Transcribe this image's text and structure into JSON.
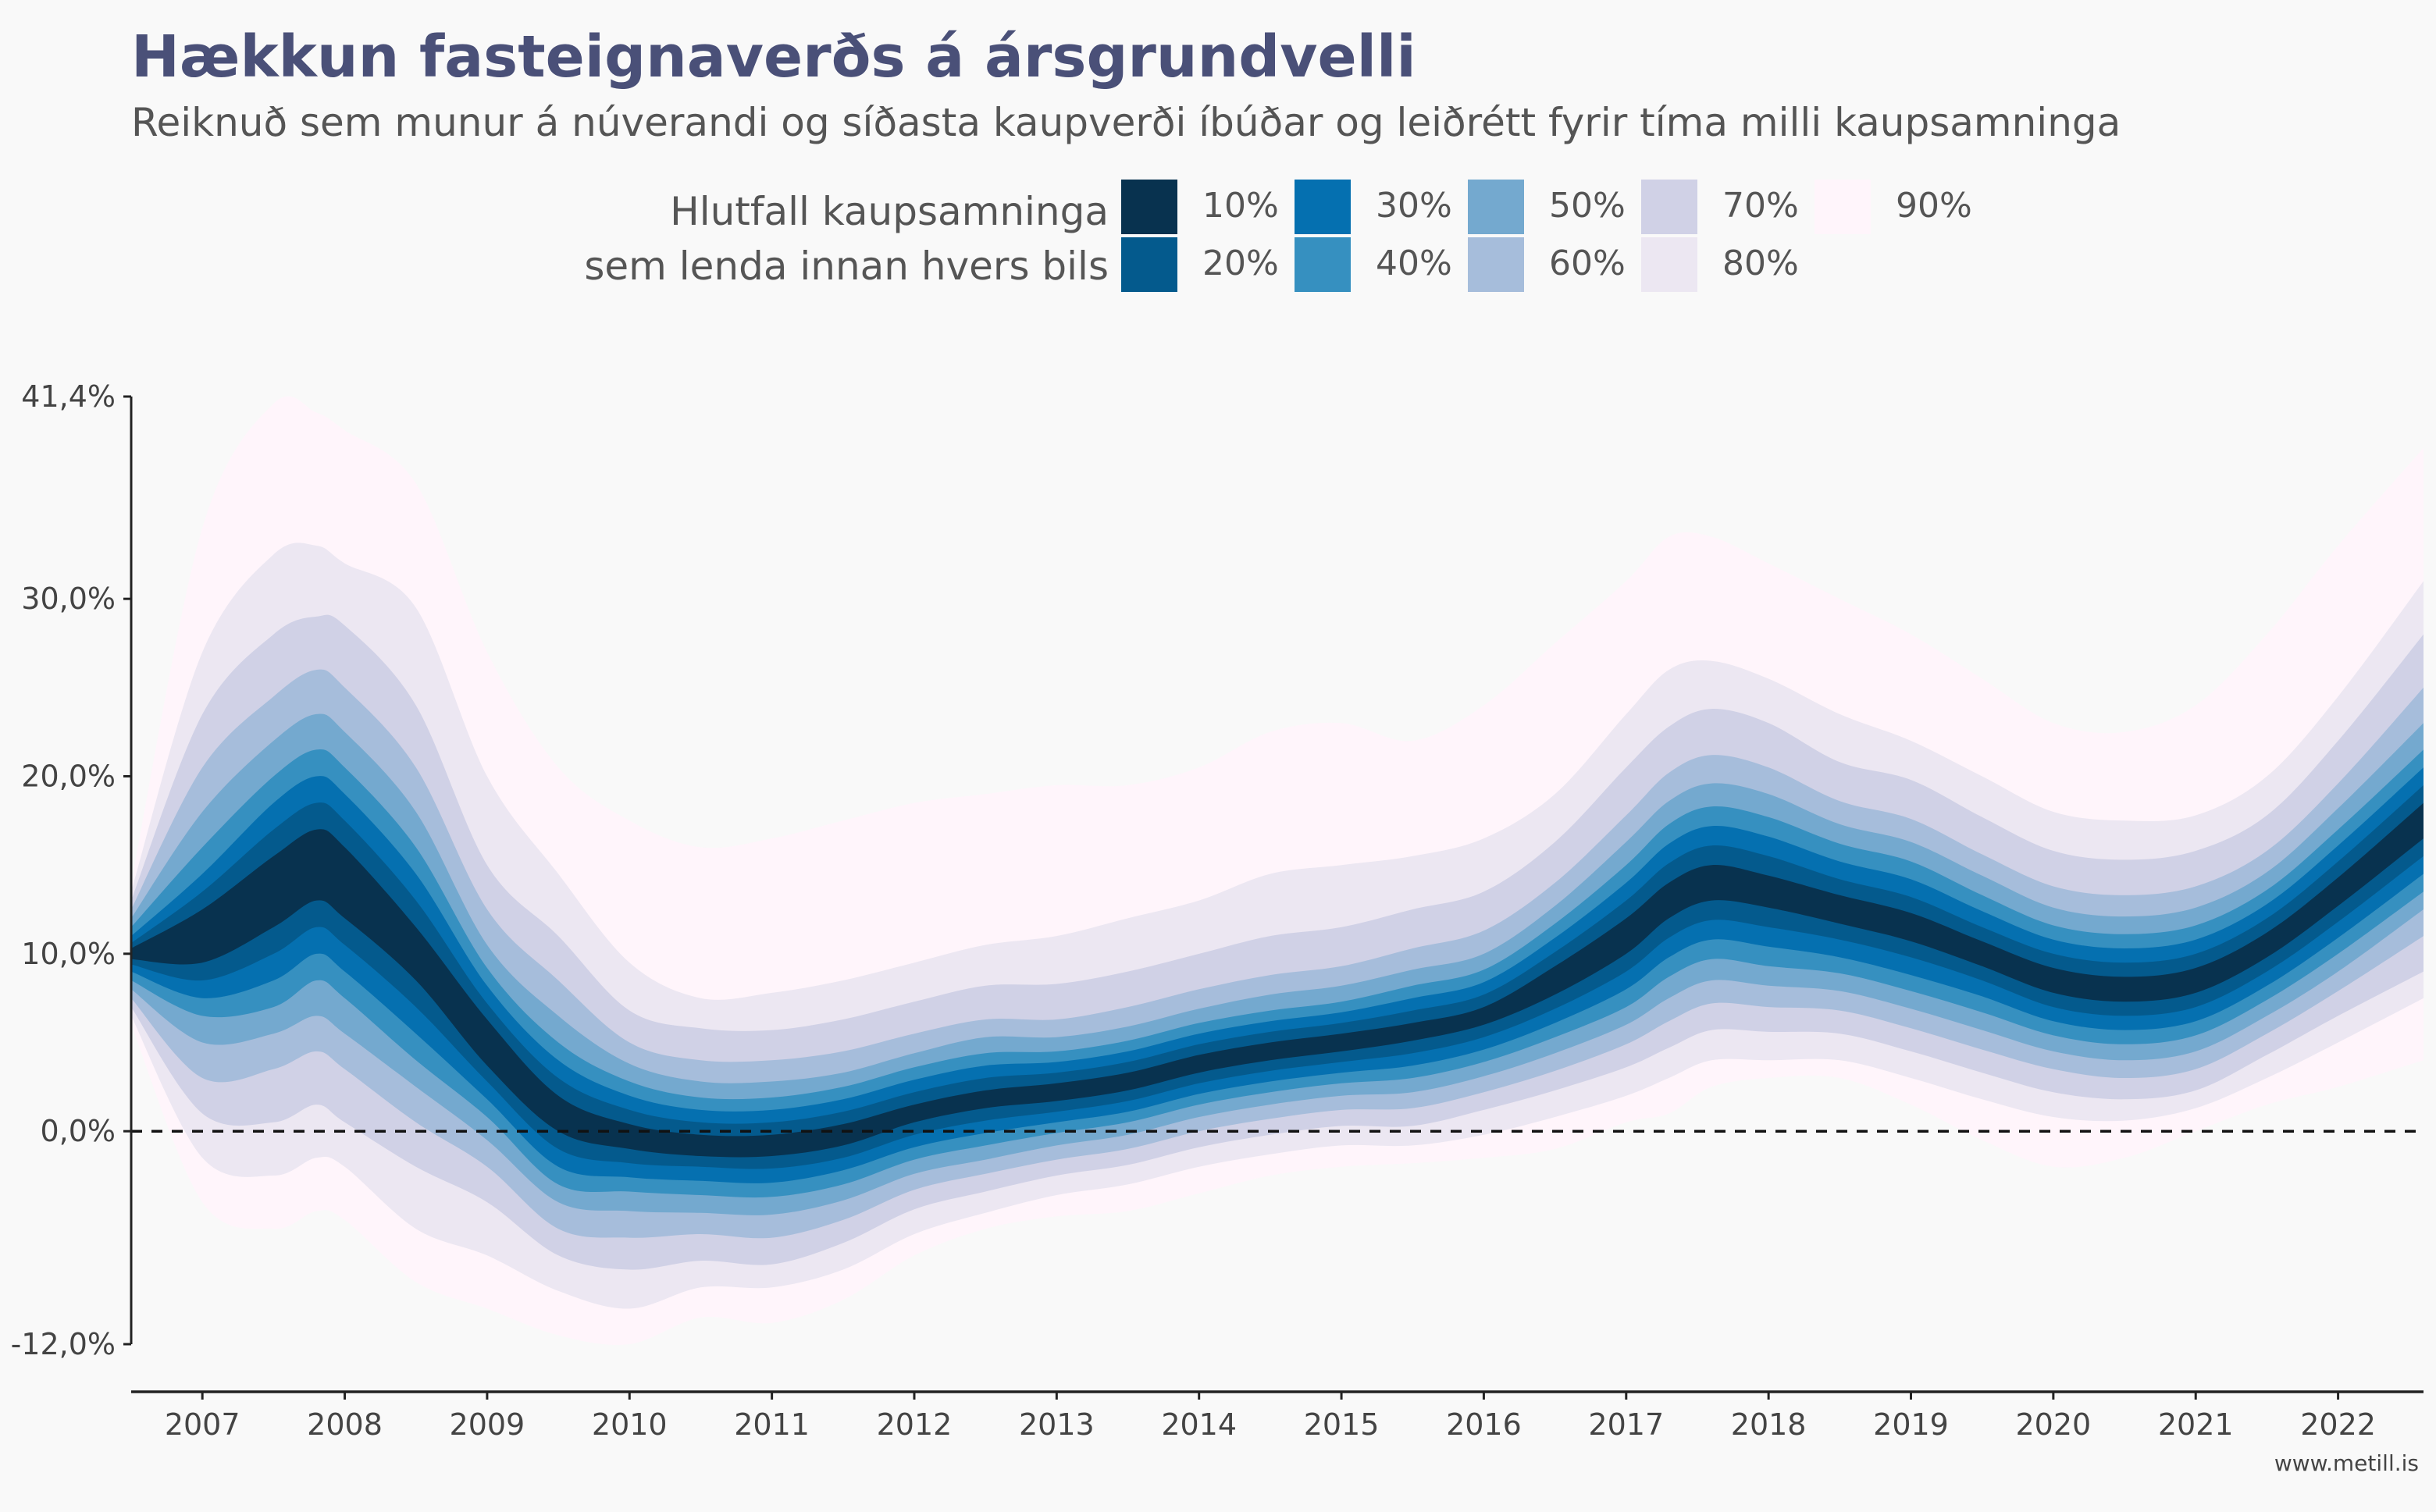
{
  "title": "Hækkun fasteignaverðs á ársgrundvelli",
  "subtitle": "Reiknuð sem munur á núverandi og síðasta kaupverði íbúðar og leiðrétt fyrir tíma milli kaupsamninga",
  "legend": {
    "title_lines": [
      "Hlutfall kaupsamninga",
      "sem lenda innan hvers bils"
    ],
    "items": [
      {
        "label": "10%",
        "color": "#08324f"
      },
      {
        "label": "20%",
        "color": "#045a8d"
      },
      {
        "label": "30%",
        "color": "#0570b0"
      },
      {
        "label": "40%",
        "color": "#3690c0"
      },
      {
        "label": "50%",
        "color": "#74a9cf"
      },
      {
        "label": "60%",
        "color": "#a6bddb"
      },
      {
        "label": "70%",
        "color": "#d0d1e6"
      },
      {
        "label": "80%",
        "color": "#ece7f2"
      },
      {
        "label": "90%",
        "color": "#fff5fb"
      }
    ]
  },
  "source": "www.metill.is",
  "chart_data": {
    "type": "area",
    "xlim": [
      2006.5,
      2022.6
    ],
    "ylim": [
      -12.0,
      41.4
    ],
    "x_ticks": [
      2007,
      2008,
      2009,
      2010,
      2011,
      2012,
      2013,
      2014,
      2015,
      2016,
      2017,
      2018,
      2019,
      2020,
      2021,
      2022
    ],
    "x_tick_labels": [
      "2007",
      "2008",
      "2009",
      "2010",
      "2011",
      "2012",
      "2013",
      "2014",
      "2015",
      "2016",
      "2017",
      "2018",
      "2019",
      "2020",
      "2021",
      "2022"
    ],
    "y_ticks": [
      -12.0,
      0.0,
      10.0,
      20.0,
      30.0,
      41.4
    ],
    "y_tick_labels": [
      "-12,0%",
      "0,0%",
      "10,0%",
      "20,0%",
      "30,0%",
      "41,4%"
    ],
    "reference_line": {
      "y": 0,
      "style": "dashed"
    },
    "x": [
      2006.5,
      2007.0,
      2007.5,
      2007.8,
      2008.0,
      2008.5,
      2009.0,
      2009.5,
      2010.0,
      2010.5,
      2011.0,
      2011.5,
      2012.0,
      2012.5,
      2013.0,
      2013.5,
      2014.0,
      2014.5,
      2015.0,
      2015.5,
      2016.0,
      2016.5,
      2017.0,
      2017.3,
      2017.6,
      2018.0,
      2018.5,
      2019.0,
      2019.5,
      2020.0,
      2020.5,
      2021.0,
      2021.5,
      2022.0,
      2022.6
    ],
    "median": [
      10.0,
      11.0,
      13.5,
      15.0,
      14.0,
      10.0,
      5.0,
      1.0,
      -0.3,
      -0.8,
      -0.8,
      -0.2,
      1.0,
      1.8,
      2.2,
      2.8,
      3.8,
      4.5,
      5.0,
      5.6,
      6.5,
      8.5,
      11.0,
      13.0,
      14.0,
      13.5,
      12.5,
      11.5,
      10.0,
      8.5,
      8.0,
      8.5,
      10.5,
      13.5,
      17.5
    ],
    "series": [
      {
        "name": "10%",
        "lower": [
          9.7,
          9.5,
          11.5,
          13.0,
          12.0,
          8.5,
          3.7,
          0.0,
          -1.0,
          -1.4,
          -1.4,
          -0.8,
          0.5,
          1.3,
          1.7,
          2.3,
          3.3,
          4.0,
          4.5,
          5.1,
          6.0,
          7.7,
          10.0,
          12.0,
          13.0,
          12.6,
          11.7,
          10.7,
          9.3,
          7.8,
          7.3,
          7.8,
          9.8,
          12.7,
          16.5
        ],
        "upper": [
          10.3,
          12.5,
          15.5,
          17.0,
          16.0,
          11.5,
          6.3,
          2.0,
          0.4,
          -0.2,
          -0.2,
          0.4,
          1.5,
          2.3,
          2.7,
          3.3,
          4.3,
          5.0,
          5.5,
          6.1,
          7.0,
          9.3,
          12.0,
          14.0,
          15.0,
          14.4,
          13.3,
          12.3,
          10.7,
          9.2,
          8.7,
          9.2,
          11.2,
          14.3,
          18.5
        ]
      },
      {
        "name": "20%",
        "lower": [
          9.4,
          8.5,
          10.0,
          11.5,
          10.5,
          7.0,
          2.8,
          -1.0,
          -1.8,
          -2.0,
          -2.1,
          -1.5,
          -0.2,
          0.6,
          1.1,
          1.7,
          2.7,
          3.4,
          3.9,
          4.4,
          5.3,
          6.9,
          9.0,
          10.9,
          11.9,
          11.5,
          10.8,
          9.8,
          8.5,
          7.0,
          6.5,
          7.0,
          9.0,
          11.8,
          15.5
        ],
        "upper": [
          10.6,
          13.5,
          17.0,
          18.5,
          17.5,
          13.0,
          7.2,
          3.0,
          1.2,
          0.5,
          0.5,
          1.1,
          2.2,
          3.0,
          3.3,
          3.9,
          4.9,
          5.6,
          6.1,
          6.8,
          7.7,
          10.1,
          13.0,
          15.1,
          16.1,
          15.5,
          14.2,
          13.2,
          11.5,
          10.0,
          9.5,
          10.0,
          12.0,
          15.2,
          19.5
        ]
      },
      {
        "name": "30%",
        "lower": [
          9.0,
          7.5,
          8.5,
          10.0,
          9.0,
          5.5,
          1.8,
          -2.0,
          -2.6,
          -2.8,
          -2.9,
          -2.2,
          -0.9,
          -0.1,
          0.5,
          1.1,
          2.1,
          2.8,
          3.3,
          3.7,
          4.6,
          6.1,
          8.0,
          9.8,
          10.8,
          10.4,
          9.8,
          8.8,
          7.6,
          6.2,
          5.7,
          6.2,
          8.2,
          10.9,
          14.5
        ],
        "upper": [
          11.0,
          14.5,
          18.5,
          20.0,
          19.0,
          14.5,
          8.2,
          4.0,
          2.0,
          1.2,
          1.2,
          1.8,
          2.9,
          3.7,
          3.9,
          4.5,
          5.5,
          6.2,
          6.7,
          7.5,
          8.4,
          10.9,
          14.0,
          16.2,
          17.2,
          16.6,
          15.2,
          14.2,
          12.4,
          10.8,
          10.3,
          10.8,
          12.8,
          16.1,
          20.5
        ]
      },
      {
        "name": "40%",
        "lower": [
          8.5,
          6.5,
          7.0,
          8.5,
          7.5,
          4.0,
          0.8,
          -3.0,
          -3.4,
          -3.6,
          -3.7,
          -3.0,
          -1.6,
          -0.8,
          -0.1,
          0.5,
          1.5,
          2.2,
          2.7,
          3.0,
          3.9,
          5.3,
          7.0,
          8.7,
          9.7,
          9.3,
          8.9,
          7.9,
          6.7,
          5.4,
          4.9,
          5.4,
          7.4,
          10.0,
          13.5
        ],
        "upper": [
          11.5,
          16.0,
          20.0,
          21.5,
          20.5,
          16.0,
          9.2,
          5.0,
          2.8,
          1.9,
          1.9,
          2.5,
          3.6,
          4.4,
          4.5,
          5.1,
          6.1,
          6.8,
          7.3,
          8.2,
          9.1,
          11.7,
          15.0,
          17.3,
          18.3,
          17.7,
          16.2,
          15.2,
          13.3,
          11.6,
          11.1,
          11.6,
          13.6,
          17.0,
          21.5
        ]
      },
      {
        "name": "50%",
        "lower": [
          8.0,
          5.0,
          5.5,
          6.5,
          5.5,
          2.5,
          -0.5,
          -4.0,
          -4.5,
          -4.6,
          -4.7,
          -3.9,
          -2.4,
          -1.6,
          -0.8,
          -0.2,
          0.8,
          1.5,
          2.0,
          2.2,
          3.1,
          4.4,
          6.0,
          7.5,
          8.5,
          8.2,
          7.9,
          6.9,
          5.7,
          4.5,
          4.0,
          4.5,
          6.5,
          9.0,
          12.5
        ],
        "upper": [
          12.0,
          18.0,
          22.0,
          23.5,
          22.5,
          18.0,
          10.5,
          6.5,
          3.8,
          2.8,
          2.8,
          3.3,
          4.4,
          5.3,
          5.3,
          5.9,
          6.9,
          7.7,
          8.2,
          9.1,
          10.0,
          12.7,
          16.3,
          18.6,
          19.6,
          19.0,
          17.3,
          16.3,
          14.4,
          12.6,
          12.1,
          12.6,
          14.6,
          18.2,
          23.0
        ]
      },
      {
        "name": "60%",
        "lower": [
          7.5,
          3.0,
          3.5,
          4.5,
          3.5,
          0.5,
          -2.0,
          -5.5,
          -6.0,
          -5.8,
          -6.0,
          -5.0,
          -3.3,
          -2.4,
          -1.6,
          -1.0,
          0.0,
          0.7,
          1.2,
          1.3,
          2.2,
          3.4,
          4.9,
          6.2,
          7.2,
          7.0,
          6.8,
          5.8,
          4.6,
          3.5,
          3.0,
          3.5,
          5.5,
          7.9,
          11.0
        ],
        "upper": [
          12.5,
          20.5,
          24.5,
          26.0,
          25.0,
          20.5,
          12.5,
          8.5,
          5.0,
          4.0,
          4.0,
          4.5,
          5.5,
          6.3,
          6.3,
          7.0,
          8.0,
          8.8,
          9.3,
          10.3,
          11.3,
          14.0,
          17.8,
          20.2,
          21.2,
          20.5,
          18.6,
          17.6,
          15.6,
          13.8,
          13.3,
          13.8,
          15.8,
          19.6,
          25.0
        ]
      },
      {
        "name": "70%",
        "lower": [
          7.0,
          1.0,
          0.5,
          1.5,
          0.5,
          -2.0,
          -4.0,
          -7.0,
          -7.8,
          -7.3,
          -7.5,
          -6.3,
          -4.4,
          -3.4,
          -2.5,
          -1.9,
          -0.9,
          -0.2,
          0.3,
          0.3,
          1.2,
          2.3,
          3.6,
          4.7,
          5.7,
          5.6,
          5.5,
          4.5,
          3.3,
          2.2,
          1.8,
          2.3,
          4.3,
          6.5,
          9.0
        ],
        "upper": [
          13.0,
          23.5,
          28.0,
          29.0,
          28.5,
          24.0,
          15.0,
          11.0,
          6.8,
          5.8,
          5.7,
          6.3,
          7.3,
          8.2,
          8.3,
          9.0,
          10.0,
          11.0,
          11.5,
          12.5,
          13.5,
          16.3,
          20.5,
          22.8,
          23.8,
          23.0,
          20.8,
          19.8,
          17.7,
          15.8,
          15.3,
          15.8,
          17.8,
          22.0,
          28.0
        ]
      },
      {
        "name": "80%",
        "lower": [
          6.5,
          -1.5,
          -2.5,
          -1.5,
          -2.0,
          -5.5,
          -7.0,
          -9.0,
          -10.0,
          -8.8,
          -8.8,
          -7.8,
          -5.8,
          -4.6,
          -3.6,
          -3.0,
          -2.0,
          -1.3,
          -0.8,
          -0.8,
          -0.2,
          0.8,
          2.0,
          3.0,
          4.0,
          4.0,
          4.0,
          3.0,
          1.8,
          0.8,
          0.6,
          1.3,
          3.0,
          5.0,
          7.5
        ],
        "upper": [
          13.5,
          27.0,
          32.5,
          33.0,
          32.0,
          29.5,
          20.0,
          14.5,
          9.5,
          7.5,
          7.8,
          8.5,
          9.5,
          10.5,
          11.0,
          12.0,
          13.0,
          14.5,
          15.0,
          15.5,
          16.5,
          19.0,
          23.5,
          26.0,
          26.5,
          25.5,
          23.5,
          22.0,
          20.0,
          18.0,
          17.5,
          17.8,
          20.0,
          24.5,
          31.0
        ]
      },
      {
        "name": "90%",
        "lower": [
          6.0,
          -4.0,
          -5.5,
          -4.5,
          -5.0,
          -8.5,
          -10.0,
          -11.5,
          -12.0,
          -10.5,
          -10.8,
          -9.5,
          -7.0,
          -5.5,
          -4.8,
          -4.5,
          -3.5,
          -2.5,
          -2.0,
          -1.8,
          -1.5,
          -1.0,
          0.5,
          1.0,
          2.5,
          3.0,
          3.0,
          1.5,
          -0.5,
          -2.0,
          -1.5,
          0.0,
          1.5,
          2.5,
          4.0
        ],
        "upper": [
          14.0,
          34.0,
          41.0,
          40.5,
          39.5,
          36.5,
          27.0,
          20.5,
          17.5,
          16.0,
          16.5,
          17.5,
          18.5,
          19.0,
          19.5,
          19.5,
          20.5,
          22.5,
          23.0,
          22.0,
          24.0,
          27.5,
          31.0,
          33.5,
          33.5,
          32.0,
          30.0,
          28.0,
          25.5,
          23.0,
          22.5,
          24.0,
          28.0,
          33.0,
          38.5
        ]
      }
    ]
  }
}
